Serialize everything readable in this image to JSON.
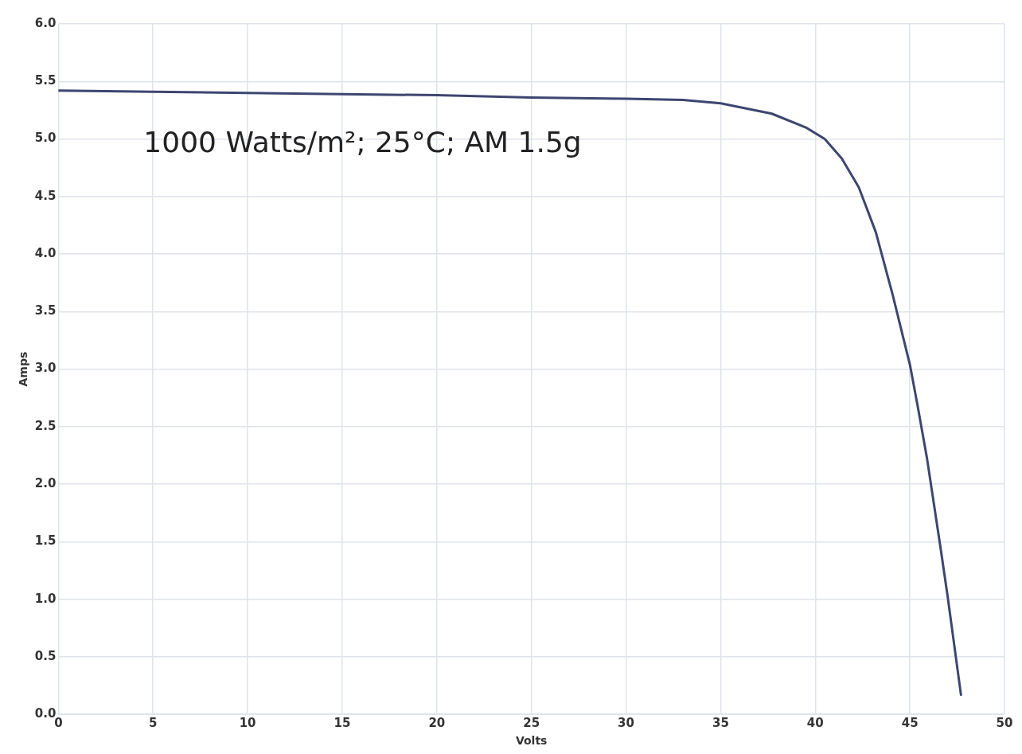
{
  "chart_data": {
    "type": "line",
    "xlabel": "Volts",
    "ylabel": "Amps",
    "annotations": [
      "1000 Watts/m²; 25°C; AM 1.5g"
    ],
    "series": [
      {
        "color": "#3d4670",
        "x": [
          0,
          5,
          10,
          15,
          20,
          25,
          30,
          33,
          35,
          37.7,
          39.5,
          40.5,
          41.4,
          42.3,
          43.2,
          44.1,
          45.0,
          45.4,
          45.9,
          46.6,
          47.0,
          47.7
        ],
        "values": [
          5.42,
          5.41,
          5.4,
          5.39,
          5.38,
          5.36,
          5.35,
          5.34,
          5.31,
          5.22,
          5.1,
          5.0,
          4.83,
          4.58,
          4.19,
          3.64,
          3.04,
          2.69,
          2.23,
          1.47,
          1.02,
          0.17
        ]
      }
    ],
    "xlim": [
      0,
      50
    ],
    "xticks": [
      0,
      5,
      10,
      15,
      20,
      25,
      30,
      35,
      40,
      45,
      50
    ],
    "ylim": [
      0,
      6
    ],
    "yticks": [
      {
        "value": 0,
        "label": "0.0"
      },
      {
        "value": 0.5,
        "label": "0.5"
      },
      {
        "value": 1,
        "label": "1.0"
      },
      {
        "value": 1.5,
        "label": "1.5"
      },
      {
        "value": 2,
        "label": "2.0"
      },
      {
        "value": 2.5,
        "label": "2.5"
      },
      {
        "value": 3,
        "label": "3.0"
      },
      {
        "value": 3.5,
        "label": "3.5"
      },
      {
        "value": 4,
        "label": "4.0"
      },
      {
        "value": 4.5,
        "label": "4.5"
      },
      {
        "value": 5,
        "label": "5.0"
      },
      {
        "value": 5.5,
        "label": "5.5"
      },
      {
        "value": 6,
        "label": "6.0"
      }
    ],
    "grid": true,
    "legend": false,
    "marker": "none",
    "line_style": "solid"
  }
}
